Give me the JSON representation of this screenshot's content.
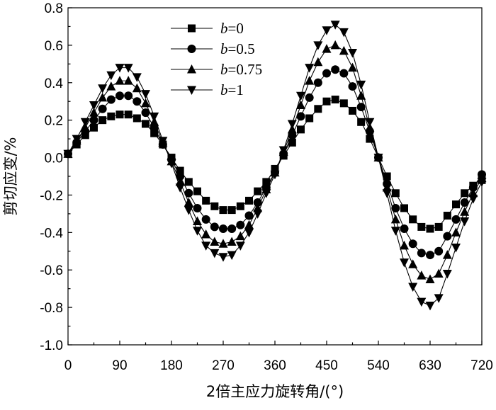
{
  "chart_data": {
    "type": "line",
    "xlabel": "2倍主应力旋转角/(°)",
    "ylabel": "剪切应变/%",
    "xlim": [
      0,
      720
    ],
    "ylim": [
      -1.0,
      0.8
    ],
    "xticks": [
      0,
      90,
      180,
      270,
      360,
      450,
      540,
      630,
      720
    ],
    "yticks": [
      -1.0,
      -0.8,
      -0.6,
      -0.4,
      -0.2,
      0.0,
      0.2,
      0.4,
      0.6,
      0.8
    ],
    "xtick_labels": [
      "0",
      "90",
      "180",
      "270",
      "360",
      "450",
      "540",
      "630",
      "720"
    ],
    "ytick_labels": [
      "-1.0",
      "-0.8",
      "-0.6",
      "-0.4",
      "-0.2",
      "0.0",
      "0.2",
      "0.4",
      "0.6",
      "0.8"
    ],
    "grid": false,
    "legend_position": "top-center",
    "x_step": 15,
    "series": [
      {
        "var": "b",
        "eq": "=0",
        "marker": "square",
        "values": [
          0.02,
          0.07,
          0.12,
          0.16,
          0.2,
          0.22,
          0.23,
          0.23,
          0.21,
          0.18,
          0.13,
          0.07,
          0.0,
          -0.07,
          -0.13,
          -0.18,
          -0.23,
          -0.26,
          -0.28,
          -0.28,
          -0.26,
          -0.23,
          -0.18,
          -0.13,
          -0.06,
          0.01,
          0.08,
          0.15,
          0.21,
          0.26,
          0.3,
          0.31,
          0.29,
          0.25,
          0.19,
          0.1,
          0.0,
          -0.1,
          -0.19,
          -0.27,
          -0.33,
          -0.37,
          -0.38,
          -0.37,
          -0.31,
          -0.25,
          -0.19,
          -0.15,
          -0.12
        ]
      },
      {
        "var": "b",
        "eq": "=0.5",
        "marker": "circle",
        "values": [
          0.02,
          0.08,
          0.14,
          0.2,
          0.26,
          0.31,
          0.33,
          0.33,
          0.3,
          0.24,
          0.16,
          0.07,
          -0.01,
          -0.1,
          -0.19,
          -0.27,
          -0.33,
          -0.37,
          -0.38,
          -0.38,
          -0.36,
          -0.31,
          -0.24,
          -0.16,
          -0.08,
          0.02,
          0.12,
          0.22,
          0.32,
          0.4,
          0.45,
          0.47,
          0.45,
          0.38,
          0.27,
          0.14,
          0.0,
          -0.14,
          -0.27,
          -0.38,
          -0.46,
          -0.51,
          -0.52,
          -0.5,
          -0.42,
          -0.33,
          -0.24,
          -0.16,
          -0.09
        ]
      },
      {
        "var": "b",
        "eq": "=0.75",
        "marker": "triangle-up",
        "values": [
          0.02,
          0.09,
          0.16,
          0.24,
          0.32,
          0.38,
          0.41,
          0.41,
          0.37,
          0.29,
          0.19,
          0.08,
          -0.02,
          -0.13,
          -0.24,
          -0.34,
          -0.41,
          -0.45,
          -0.46,
          -0.45,
          -0.42,
          -0.36,
          -0.27,
          -0.17,
          -0.08,
          0.03,
          0.15,
          0.28,
          0.41,
          0.51,
          0.58,
          0.6,
          0.57,
          0.48,
          0.33,
          0.16,
          0.0,
          -0.16,
          -0.33,
          -0.47,
          -0.57,
          -0.63,
          -0.65,
          -0.62,
          -0.52,
          -0.4,
          -0.29,
          -0.19,
          -0.11
        ]
      },
      {
        "var": "b",
        "eq": "=1",
        "marker": "triangle-down",
        "values": [
          0.02,
          0.1,
          0.19,
          0.28,
          0.37,
          0.44,
          0.48,
          0.48,
          0.43,
          0.34,
          0.22,
          0.09,
          -0.03,
          -0.16,
          -0.28,
          -0.39,
          -0.47,
          -0.51,
          -0.53,
          -0.52,
          -0.47,
          -0.4,
          -0.3,
          -0.19,
          -0.09,
          0.04,
          0.18,
          0.33,
          0.48,
          0.6,
          0.68,
          0.71,
          0.67,
          0.56,
          0.39,
          0.19,
          0.0,
          -0.19,
          -0.39,
          -0.56,
          -0.69,
          -0.77,
          -0.79,
          -0.75,
          -0.62,
          -0.48,
          -0.34,
          -0.22,
          -0.13
        ]
      }
    ]
  }
}
